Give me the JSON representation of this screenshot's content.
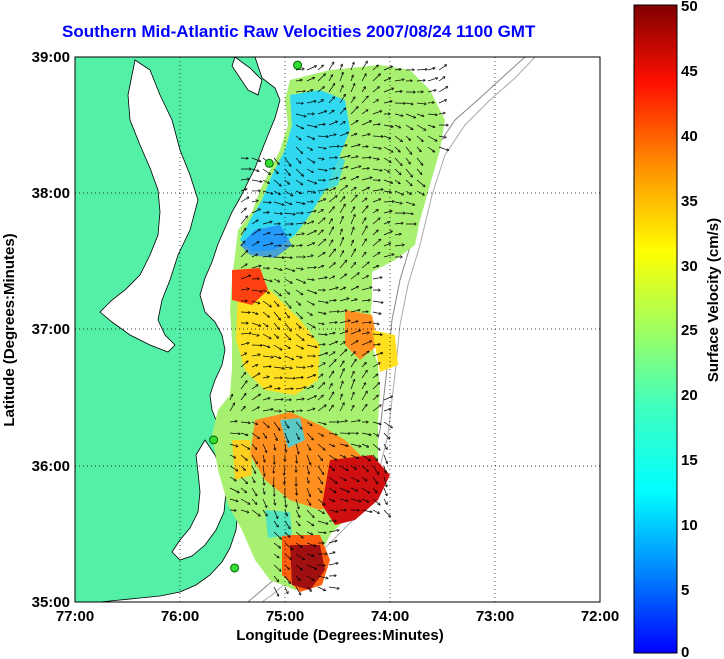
{
  "title": "Southern Mid-Atlantic Raw Velocities 2007/08/24 1100 GMT",
  "x_axis": {
    "label": "Longitude (Degrees:Minutes)",
    "ticks": [
      "77:00",
      "76:00",
      "75:00",
      "74:00",
      "73:00",
      "72:00"
    ]
  },
  "y_axis": {
    "label": "Latitude (Degrees:Minutes)",
    "ticks": [
      "39:00",
      "38:00",
      "37:00",
      "36:00",
      "35:00"
    ]
  },
  "colorbar": {
    "label": "Surface Velocity (cm/s)",
    "ticks": [
      "50",
      "45",
      "40",
      "35",
      "30",
      "25",
      "20",
      "15",
      "10",
      "5",
      "0"
    ],
    "min": 0,
    "max": 50
  },
  "colors": {
    "land": "#55f0a8",
    "coast": "#000000",
    "station": "#33dd33",
    "title": "#0000ff"
  },
  "stations": [
    {
      "lon": -74.88,
      "lat": 38.94
    },
    {
      "lon": -75.15,
      "lat": 38.22
    },
    {
      "lon": -75.68,
      "lat": 36.19
    },
    {
      "lon": -75.48,
      "lat": 35.25
    }
  ]
}
